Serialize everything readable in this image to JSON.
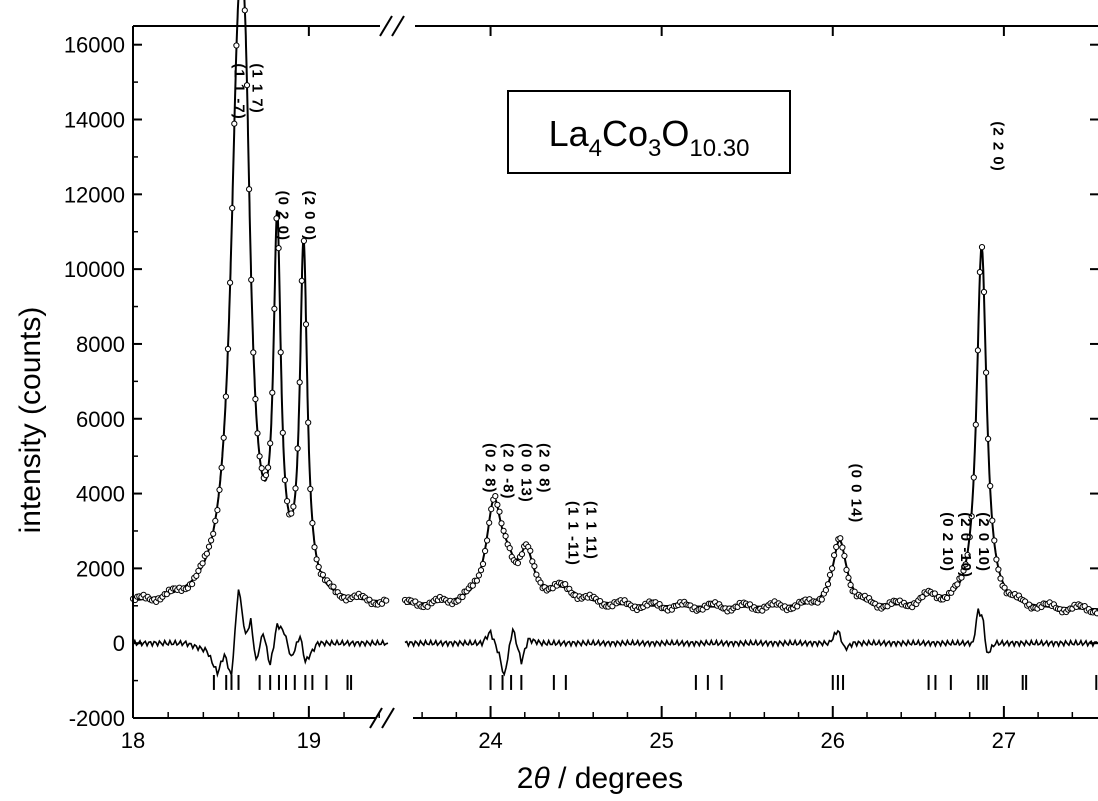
{
  "chart_data": {
    "type": "scatter",
    "title": "",
    "formula": {
      "base": [
        "La",
        "Co",
        "O"
      ],
      "subs": [
        "4",
        "3",
        "10.30"
      ]
    },
    "xlabel": {
      "symbol": "θ",
      "prefix": "2",
      "suffix": " / degrees"
    },
    "ylabel": "intensity (counts)",
    "ylim": [
      -2000,
      16500
    ],
    "yticks": [
      -2000,
      0,
      2000,
      4000,
      6000,
      8000,
      10000,
      12000,
      14000,
      16000
    ],
    "xsegments": [
      {
        "xlim": [
          18,
          19.45
        ],
        "ticks": [
          18,
          19
        ]
      },
      {
        "xlim": [
          23.5,
          27.55
        ],
        "ticks": [
          24,
          25,
          26,
          27
        ]
      }
    ],
    "background": {
      "left": 1000,
      "right": 880
    },
    "peaks": [
      {
        "x": 18.6,
        "height": 13300,
        "width": 0.055
      },
      {
        "x": 18.64,
        "height": 6500,
        "width": 0.035
      },
      {
        "x": 18.82,
        "height": 9300,
        "width": 0.025
      },
      {
        "x": 18.97,
        "height": 9200,
        "width": 0.025
      },
      {
        "x": 24.02,
        "height": 2600,
        "width": 0.055
      },
      {
        "x": 24.1,
        "height": 600,
        "width": 0.05
      },
      {
        "x": 24.21,
        "height": 1200,
        "width": 0.05
      },
      {
        "x": 24.42,
        "height": 400,
        "width": 0.12
      },
      {
        "x": 26.04,
        "height": 1800,
        "width": 0.05
      },
      {
        "x": 26.57,
        "height": 250,
        "width": 0.07
      },
      {
        "x": 26.87,
        "height": 9700,
        "width": 0.035
      }
    ],
    "difference_curve": [
      [
        18,
        0
      ],
      [
        18.3,
        0
      ],
      [
        18.42,
        -200
      ],
      [
        18.48,
        -800
      ],
      [
        18.52,
        -300
      ],
      [
        18.56,
        -900
      ],
      [
        18.6,
        1500
      ],
      [
        18.64,
        200
      ],
      [
        18.67,
        600
      ],
      [
        18.7,
        -500
      ],
      [
        18.74,
        300
      ],
      [
        18.78,
        -600
      ],
      [
        18.82,
        500
      ],
      [
        18.86,
        300
      ],
      [
        18.9,
        -400
      ],
      [
        18.95,
        200
      ],
      [
        18.98,
        -500
      ],
      [
        19.05,
        0
      ],
      [
        19.45,
        0
      ],
      [
        23.5,
        0
      ],
      [
        23.95,
        0
      ],
      [
        24.0,
        300
      ],
      [
        24.05,
        -300
      ],
      [
        24.08,
        -900
      ],
      [
        24.13,
        400
      ],
      [
        24.18,
        -500
      ],
      [
        24.22,
        100
      ],
      [
        24.3,
        0
      ],
      [
        25.98,
        0
      ],
      [
        26.03,
        350
      ],
      [
        26.07,
        -150
      ],
      [
        26.12,
        0
      ],
      [
        26.82,
        0
      ],
      [
        26.85,
        900
      ],
      [
        26.88,
        600
      ],
      [
        26.9,
        -300
      ],
      [
        26.95,
        0
      ],
      [
        27.55,
        0
      ]
    ],
    "reflection_ticks": [
      18.46,
      18.53,
      18.56,
      18.6,
      18.72,
      18.78,
      18.83,
      18.87,
      18.92,
      18.98,
      19.02,
      19.1,
      19.22,
      19.24,
      24.0,
      24.07,
      24.12,
      24.18,
      24.37,
      24.44,
      25.2,
      25.27,
      25.35,
      26.0,
      26.03,
      26.06,
      26.56,
      26.6,
      26.69,
      26.85,
      26.88,
      26.9,
      27.11,
      27.13,
      27.54
    ],
    "annotations": [
      {
        "x": 18.6,
        "lines": [
          "(1 1 -7)",
          "(1 1 7)"
        ],
        "y_top": 15500
      },
      {
        "x": 18.8,
        "lines": [
          "(0 2 0)"
        ],
        "y_top": 12100
      },
      {
        "x": 18.95,
        "lines": [
          "(2 0 0)"
        ],
        "y_top": 12100
      },
      {
        "x": 24.1,
        "lines": [
          "(0 2 8)",
          "(2 0 -8)",
          "(0 0 13)",
          "(2 0 8)"
        ],
        "y_top": 5350
      },
      {
        "x": 24.48,
        "lines": [
          "(1 1 -11)",
          "(1 1 11)"
        ],
        "y_top": 3800
      },
      {
        "x": 26.08,
        "lines": [
          "(0 0 14)"
        ],
        "y_top": 4800
      },
      {
        "x": 26.72,
        "lines": [
          "(0 2 10)",
          "(2 0 -10)",
          "(2 0 10)"
        ],
        "y_top": 3500
      },
      {
        "x": 26.91,
        "lines": [
          "(2 2 0)"
        ],
        "y_top": 13950
      }
    ]
  }
}
